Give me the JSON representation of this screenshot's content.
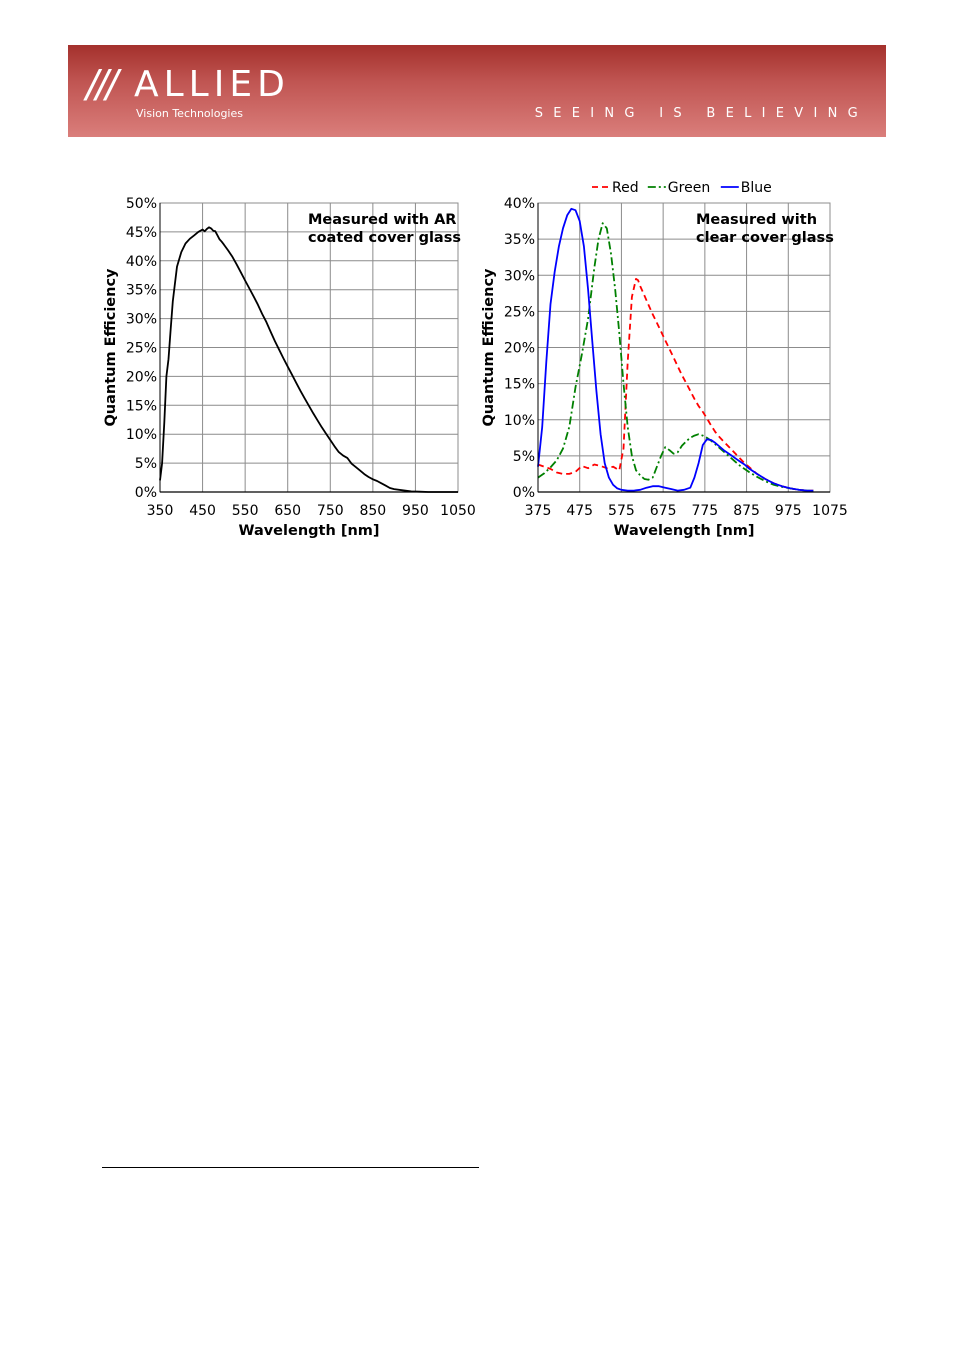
{
  "header": {
    "logo_slashes": "///",
    "logo_name": "ALLIED",
    "logo_subtitle": "Vision Technologies",
    "tagline": "SEEING IS BELIEVING"
  },
  "chart_data": [
    {
      "type": "line",
      "xlabel": "Wavelength [nm]",
      "ylabel": "Quantum Efficiency",
      "xlim": [
        350,
        1050
      ],
      "ylim": [
        0,
        50
      ],
      "xticks": [
        350,
        450,
        550,
        650,
        750,
        850,
        950,
        1050
      ],
      "yticks": [
        0,
        5,
        10,
        15,
        20,
        25,
        30,
        35,
        40,
        45,
        50
      ],
      "ytick_labels": [
        "0%",
        "5%",
        "10%",
        "15%",
        "20%",
        "25%",
        "30%",
        "35%",
        "40%",
        "45%",
        "50%"
      ],
      "annotation": [
        "Measured with AR",
        "coated cover glass"
      ],
      "grid": true,
      "series": [
        {
          "color": "#000000",
          "style": "solid",
          "x": [
            350,
            355,
            360,
            365,
            370,
            375,
            380,
            385,
            390,
            400,
            410,
            420,
            430,
            440,
            450,
            455,
            460,
            465,
            470,
            475,
            480,
            485,
            490,
            495,
            500,
            510,
            520,
            530,
            540,
            550,
            560,
            570,
            580,
            590,
            600,
            610,
            620,
            630,
            640,
            650,
            660,
            670,
            680,
            690,
            700,
            710,
            720,
            730,
            740,
            750,
            760,
            770,
            780,
            790,
            800,
            810,
            820,
            830,
            840,
            850,
            860,
            870,
            880,
            890,
            900,
            920,
            940,
            960,
            980,
            1000,
            1020,
            1040,
            1050
          ],
          "y": [
            2,
            5,
            12,
            20,
            23,
            28,
            33,
            36,
            39,
            41.5,
            43,
            43.8,
            44.4,
            45,
            45.4,
            45.1,
            45.5,
            45.8,
            45.6,
            45.2,
            45.1,
            44.4,
            43.7,
            43.3,
            42.8,
            41.8,
            40.7,
            39.4,
            38,
            36.6,
            35.2,
            33.8,
            32.4,
            30.8,
            29.4,
            27.7,
            26.1,
            24.6,
            23.1,
            21.7,
            20.3,
            18.9,
            17.5,
            16.2,
            14.9,
            13.6,
            12.4,
            11.2,
            10.1,
            9,
            7.9,
            6.9,
            6.3,
            5.9,
            4.9,
            4.3,
            3.7,
            3.1,
            2.6,
            2.2,
            1.9,
            1.5,
            1.1,
            0.7,
            0.5,
            0.3,
            0.1,
            0.05,
            0,
            0,
            0,
            0,
            0
          ]
        }
      ]
    },
    {
      "type": "line",
      "xlabel": "Wavelength [nm]",
      "ylabel": "Quantum Efficiency",
      "xlim": [
        375,
        1075
      ],
      "ylim": [
        0,
        40
      ],
      "xticks": [
        375,
        475,
        575,
        675,
        775,
        875,
        975,
        1075
      ],
      "yticks": [
        0,
        5,
        10,
        15,
        20,
        25,
        30,
        35,
        40
      ],
      "ytick_labels": [
        "0%",
        "5%",
        "10%",
        "15%",
        "20%",
        "25%",
        "30%",
        "35%",
        "40%"
      ],
      "annotation": [
        "Measured with",
        "clear cover glass"
      ],
      "legend": "top",
      "grid": true,
      "series": [
        {
          "name": "Red",
          "color": "#ff0000",
          "style": "dashed",
          "x": [
            375,
            390,
            405,
            420,
            435,
            450,
            465,
            480,
            495,
            510,
            525,
            540,
            555,
            570,
            580,
            590,
            600,
            610,
            615,
            620,
            630,
            640,
            650,
            660,
            670,
            680,
            690,
            700,
            710,
            720,
            730,
            740,
            750,
            760,
            770,
            780,
            790,
            800,
            810,
            820,
            830,
            840,
            850,
            860,
            870,
            880,
            900,
            920,
            940,
            960,
            980,
            1000,
            1020,
            1035
          ],
          "y": [
            3.8,
            3.5,
            3.2,
            2.7,
            2.5,
            2.5,
            2.8,
            3.6,
            3.3,
            3.8,
            3.6,
            3.3,
            3.5,
            3,
            6,
            18,
            27,
            29.5,
            29.3,
            28.5,
            27.2,
            25.9,
            24.6,
            23.4,
            22.2,
            21,
            19.8,
            18.6,
            17.4,
            16.2,
            15.1,
            14,
            12.9,
            11.9,
            11.1,
            10.2,
            9.2,
            8.3,
            7.6,
            7,
            6.4,
            5.8,
            5.2,
            4.6,
            4,
            3.5,
            2.5,
            1.8,
            1.2,
            0.8,
            0.5,
            0.3,
            0.2,
            0.2
          ]
        },
        {
          "name": "Green",
          "color": "#008000",
          "style": "dashdot",
          "x": [
            375,
            390,
            405,
            420,
            435,
            450,
            465,
            480,
            495,
            510,
            520,
            530,
            540,
            550,
            560,
            570,
            580,
            590,
            600,
            610,
            620,
            630,
            640,
            650,
            660,
            670,
            680,
            690,
            700,
            710,
            720,
            730,
            740,
            750,
            760,
            770,
            780,
            790,
            800,
            810,
            820,
            830,
            840,
            850,
            860,
            870,
            880,
            900,
            920,
            940,
            960,
            980,
            1000,
            1020,
            1035
          ],
          "y": [
            2,
            2.6,
            3.4,
            4.4,
            6,
            9,
            14.5,
            19,
            24,
            31,
            35,
            37.2,
            36.5,
            33,
            28,
            22,
            15,
            9,
            5,
            3,
            2.3,
            1.8,
            1.7,
            2,
            3.5,
            5,
            6.2,
            5.8,
            5.3,
            5.5,
            6.4,
            7,
            7.5,
            7.8,
            8,
            7.8,
            7.5,
            7.1,
            6.6,
            6.1,
            5.6,
            5.1,
            4.6,
            4.1,
            3.6,
            3.2,
            2.8,
            2.1,
            1.5,
            1,
            0.7,
            0.5,
            0.3,
            0.2,
            0.2
          ]
        },
        {
          "name": "Blue",
          "color": "#0000ff",
          "style": "solid",
          "x": [
            375,
            385,
            395,
            405,
            415,
            425,
            435,
            445,
            455,
            465,
            475,
            485,
            495,
            505,
            515,
            525,
            535,
            545,
            555,
            565,
            575,
            590,
            605,
            620,
            635,
            650,
            665,
            680,
            695,
            710,
            725,
            740,
            750,
            760,
            770,
            780,
            790,
            800,
            810,
            820,
            830,
            840,
            850,
            860,
            870,
            880,
            900,
            920,
            940,
            960,
            980,
            1000,
            1020,
            1035
          ],
          "y": [
            3.5,
            9,
            18,
            26,
            30.5,
            34,
            36.5,
            38.3,
            39.2,
            39,
            37.5,
            34,
            28,
            21,
            14,
            8,
            4,
            2,
            1,
            0.5,
            0.3,
            0.2,
            0.2,
            0.3,
            0.6,
            0.8,
            0.8,
            0.6,
            0.4,
            0.2,
            0.3,
            0.6,
            2,
            4,
            6.5,
            7.3,
            7.2,
            6.8,
            6.3,
            5.8,
            5.4,
            5,
            4.6,
            4.2,
            3.8,
            3.3,
            2.5,
            1.8,
            1.2,
            0.8,
            0.5,
            0.3,
            0.2,
            0.2
          ]
        }
      ]
    }
  ]
}
